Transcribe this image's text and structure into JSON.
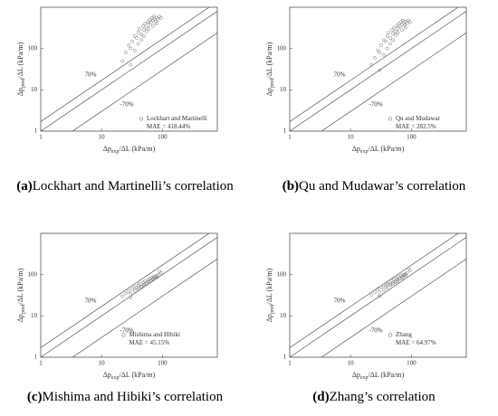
{
  "chart_data": [
    {
      "type": "scatter",
      "caption_tag": "(a)",
      "caption": "Lockhart and Martinelli’s correlation",
      "xlabel": [
        "Δp",
        "exp",
        "/ΔL (kPa/m)"
      ],
      "ylabel": [
        "Δp",
        "pred",
        "/ΔL (kPa/m)"
      ],
      "log_x": true,
      "log_y": true,
      "xlim": [
        1,
        800
      ],
      "ylim": [
        1,
        1000
      ],
      "xticks": [
        1,
        10,
        100
      ],
      "yticks": [
        1,
        10,
        100
      ],
      "reference_lines": [
        {
          "value": 70,
          "label": "70%"
        },
        {
          "value": 0
        },
        {
          "value": -70,
          "label": "-70%"
        }
      ],
      "annotation": "MAE = 418.44%",
      "series": [
        {
          "name": "Lockhart and Martinelli",
          "color": "#777",
          "x": [
            22,
            25,
            28,
            30,
            32,
            35,
            38,
            40,
            42,
            45,
            48,
            50,
            52,
            55,
            58,
            60,
            62,
            65,
            68,
            70,
            72,
            75,
            78,
            80,
            85,
            90,
            95,
            30,
            40,
            50,
            60,
            70,
            80,
            35,
            45,
            55
          ],
          "values": [
            50,
            80,
            120,
            40,
            150,
            200,
            180,
            250,
            300,
            220,
            350,
            280,
            400,
            320,
            450,
            380,
            500,
            420,
            550,
            480,
            600,
            520,
            450,
            560,
            500,
            600,
            550,
            100,
            130,
            200,
            300,
            350,
            400,
            90,
            160,
            260
          ]
        }
      ]
    },
    {
      "type": "scatter",
      "caption_tag": "(b)",
      "caption": "Qu and Mudawar’s correlation",
      "xlabel": [
        "Δp",
        "exp",
        "/ΔL (kPa/m)"
      ],
      "ylabel": [
        "Δp",
        "pred",
        "/ΔL (kPa/m)"
      ],
      "log_x": true,
      "log_y": true,
      "xlim": [
        1,
        800
      ],
      "ylim": [
        1,
        1000
      ],
      "xticks": [
        1,
        10,
        100
      ],
      "yticks": [
        1,
        10,
        100
      ],
      "reference_lines": [
        {
          "value": 70,
          "label": "70%"
        },
        {
          "value": 0
        },
        {
          "value": -70,
          "label": "-70%"
        }
      ],
      "annotation": "MAE = 282.5%",
      "series": [
        {
          "name": "Qu and Mudawar",
          "color": "#777",
          "x": [
            22,
            25,
            28,
            30,
            32,
            35,
            38,
            40,
            42,
            45,
            48,
            50,
            52,
            55,
            58,
            60,
            62,
            65,
            68,
            70,
            72,
            75,
            78,
            80,
            85,
            90,
            95,
            30,
            40,
            50,
            60,
            70,
            80,
            35,
            45,
            55
          ],
          "values": [
            40,
            60,
            90,
            30,
            120,
            160,
            150,
            200,
            240,
            180,
            280,
            230,
            320,
            260,
            360,
            300,
            400,
            340,
            440,
            380,
            480,
            420,
            360,
            450,
            400,
            480,
            440,
            80,
            100,
            160,
            240,
            280,
            320,
            70,
            130,
            210
          ]
        }
      ]
    },
    {
      "type": "scatter",
      "caption_tag": "(c)",
      "caption": "Mishima and Hibiki’s correlation",
      "xlabel": [
        "Δp",
        "exp",
        "/ΔL (kPa/m)"
      ],
      "ylabel": [
        "Δp",
        "pred",
        "/ΔL (kPa/m)"
      ],
      "log_x": true,
      "log_y": true,
      "xlim": [
        1,
        800
      ],
      "ylim": [
        1,
        1000
      ],
      "xticks": [
        1,
        10,
        100
      ],
      "yticks": [
        1,
        10,
        100
      ],
      "reference_lines": [
        {
          "value": 70,
          "label": "70%"
        },
        {
          "value": 0
        },
        {
          "value": -70,
          "label": "-70%"
        }
      ],
      "annotation": "MAE = 45.15%",
      "series": [
        {
          "name": "Mishima and Hibiki",
          "color": "#777",
          "x": [
            22,
            25,
            28,
            30,
            32,
            35,
            38,
            40,
            42,
            45,
            48,
            50,
            52,
            55,
            58,
            60,
            62,
            65,
            68,
            70,
            72,
            75,
            78,
            80,
            85,
            90,
            95,
            30,
            40,
            50,
            60,
            70,
            80,
            35,
            45,
            55
          ],
          "values": [
            30,
            35,
            40,
            28,
            45,
            50,
            48,
            55,
            60,
            52,
            65,
            58,
            70,
            62,
            75,
            68,
            80,
            72,
            85,
            78,
            90,
            82,
            88,
            95,
            100,
            120,
            110,
            35,
            45,
            55,
            65,
            75,
            85,
            40,
            50,
            60
          ]
        }
      ]
    },
    {
      "type": "scatter",
      "caption_tag": "(d)",
      "caption": "Zhang’s correlation",
      "xlabel": [
        "Δp",
        "exp",
        "/ΔL (kPa/m)"
      ],
      "ylabel": [
        "Δp",
        "pred",
        "/ΔL (kPa/m)"
      ],
      "log_x": true,
      "log_y": true,
      "xlim": [
        1,
        800
      ],
      "ylim": [
        1,
        1000
      ],
      "xticks": [
        1,
        10,
        100
      ],
      "yticks": [
        1,
        10,
        100
      ],
      "reference_lines": [
        {
          "value": 70,
          "label": "70%"
        },
        {
          "value": 0
        },
        {
          "value": -70,
          "label": "-70%"
        }
      ],
      "annotation": "MAE = 64.97%",
      "series": [
        {
          "name": "Zhang",
          "color": "#777",
          "x": [
            22,
            25,
            28,
            30,
            32,
            35,
            38,
            40,
            42,
            45,
            48,
            50,
            52,
            55,
            58,
            60,
            62,
            65,
            68,
            70,
            72,
            75,
            78,
            80,
            85,
            90,
            95,
            30,
            40,
            50,
            60,
            70,
            80,
            35,
            45,
            55
          ],
          "values": [
            32,
            38,
            45,
            30,
            50,
            55,
            52,
            60,
            65,
            58,
            72,
            64,
            78,
            68,
            82,
            75,
            90,
            80,
            95,
            86,
            100,
            92,
            98,
            105,
            110,
            140,
            125,
            38,
            48,
            60,
            70,
            82,
            95,
            42,
            55,
            66
          ]
        }
      ]
    }
  ]
}
